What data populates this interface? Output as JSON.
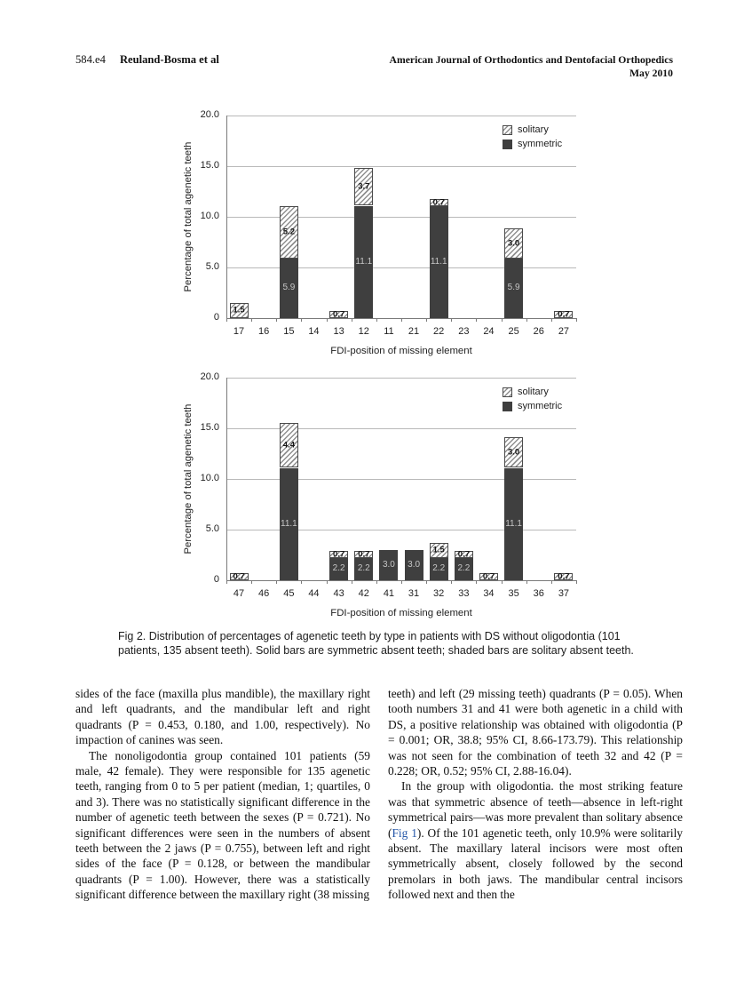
{
  "header": {
    "page_label": "584.e4",
    "authors": "Reuland-Bosma et al",
    "journal": "American Journal of Orthodontics and Dentofacial Orthopedics",
    "issue": "May 2010"
  },
  "figure": {
    "caption": "Fig 2.  Distribution of percentages of agenetic teeth by type in patients with DS without oligodontia (101 patients, 135 absent teeth). Solid bars are symmetric absent teeth; shaded bars are solitary absent teeth."
  },
  "chart_data": [
    {
      "type": "bar",
      "stacked": true,
      "title": "",
      "xlabel": "FDI-position of missing element",
      "ylabel": "Percentage of total agenetic teeth",
      "ylim": [
        0,
        20
      ],
      "grid": true,
      "yticks": [
        {
          "v": 20,
          "label": "20.0"
        },
        {
          "v": 15,
          "label": "15.0"
        },
        {
          "v": 10,
          "label": "10.0"
        },
        {
          "v": 5,
          "label": "5.0"
        },
        {
          "v": 0,
          "label": "0"
        }
      ],
      "categories": [
        "17",
        "16",
        "15",
        "14",
        "13",
        "12",
        "11",
        "21",
        "22",
        "23",
        "24",
        "25",
        "26",
        "27"
      ],
      "series": [
        {
          "name": "symmetric",
          "values": [
            0,
            0,
            5.9,
            0,
            0,
            11.1,
            0,
            0,
            11.1,
            0,
            0,
            5.9,
            0,
            0
          ]
        },
        {
          "name": "solitary",
          "values": [
            1.5,
            0,
            5.2,
            0,
            0.7,
            3.7,
            0,
            0,
            0.7,
            0,
            0,
            3.0,
            0,
            0.7
          ]
        }
      ],
      "legend": [
        {
          "name": "solitary",
          "style": "hatch"
        },
        {
          "name": "symmetric",
          "style": "solid"
        }
      ],
      "legend_position": "top-right"
    },
    {
      "type": "bar",
      "stacked": true,
      "title": "",
      "xlabel": "FDI-position of missing element",
      "ylabel": "Percentage of total agenetic teeth",
      "ylim": [
        0,
        20
      ],
      "grid": true,
      "yticks": [
        {
          "v": 20,
          "label": "20.0"
        },
        {
          "v": 15,
          "label": "15.0"
        },
        {
          "v": 10,
          "label": "10.0"
        },
        {
          "v": 5,
          "label": "5.0"
        },
        {
          "v": 0,
          "label": "0"
        }
      ],
      "categories": [
        "47",
        "46",
        "45",
        "44",
        "43",
        "42",
        "41",
        "31",
        "32",
        "33",
        "34",
        "35",
        "36",
        "37"
      ],
      "series": [
        {
          "name": "symmetric",
          "values": [
            0,
            0,
            11.1,
            0,
            2.2,
            2.2,
            3.0,
            3.0,
            2.2,
            2.2,
            0,
            11.1,
            0,
            0
          ]
        },
        {
          "name": "solitary",
          "values": [
            0.7,
            0,
            4.4,
            0,
            0.7,
            0.7,
            0,
            0,
            1.5,
            0.7,
            0.7,
            3.0,
            0,
            0.7
          ]
        }
      ],
      "legend": [
        {
          "name": "solitary",
          "style": "hatch"
        },
        {
          "name": "symmetric",
          "style": "solid"
        }
      ],
      "legend_position": "top-right"
    }
  ],
  "body": {
    "left_column": {
      "p1": "sides of the face (maxilla plus mandible), the maxillary right and left quadrants, and the mandibular left and right quadrants (P = 0.453, 0.180, and 1.00, respectively). No impaction of canines was seen.",
      "p2": "The nonoligodontia group contained 101 patients (59 male, 42 female). They were responsible for 135 agenetic teeth, ranging from 0 to 5 per patient (median, 1; quartiles, 0 and 3). There was no statistically significant difference in the number of agenetic teeth between the sexes (P = 0.721). No significant differences were seen in the numbers of absent teeth between the 2 jaws (P = 0.755), between left and right sides of the face (P = 0.128, or between the mandibular quadrants (P = 1.00). However, there was a statistically significant difference between the maxillary right (38 missing"
    },
    "right_column": {
      "p1": "teeth) and left (29 missing teeth) quadrants (P = 0.05). When tooth numbers 31 and 41 were both agenetic in a child with DS, a positive relationship was obtained with oligodontia (P = 0.001; OR, 38.8; 95% CI, 8.66-173.79). This relationship was not seen for the combination of teeth 32 and 42 (P = 0.228; OR, 0.52; 95% CI, 2.88-16.04).",
      "p2_before": "In the group with oligodontia. the most striking feature was that symmetric absence of teeth—absence in left-right symmetrical pairs—was more prevalent than solitary absence (",
      "fig_link": "Fig 1",
      "p2_after": "). Of the 101 agenetic teeth, only 10.9% were solitarily absent. The maxillary lateral incisors were most often symmetrically absent, closely followed by the second premolars in both jaws. The mandibular central incisors followed next and then the"
    }
  },
  "colors": {
    "symmetric_bar": "#3f3f3f",
    "hatch_stripe": "#8f8f8f",
    "segment_border": "#4a4a4a",
    "gridline": "#b9b9b9",
    "axis": "#7a7a7a",
    "link_blue": "#2456a8"
  }
}
